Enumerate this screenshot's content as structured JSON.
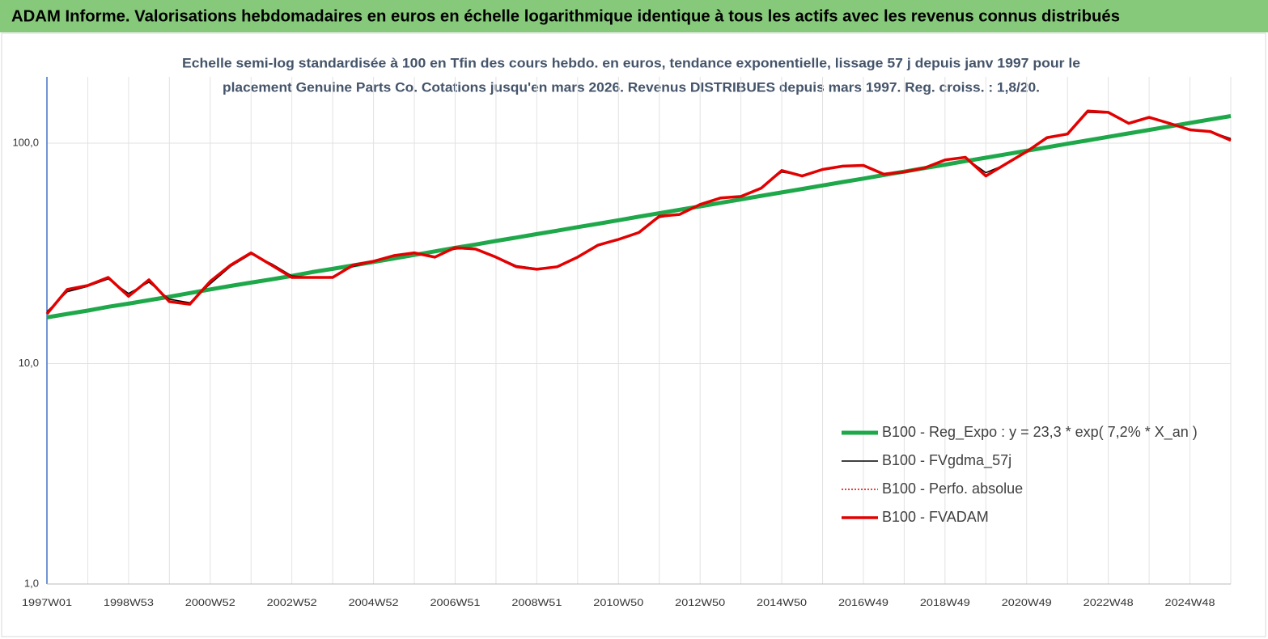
{
  "chart_data": {
    "type": "line",
    "title": "ADAM Informe. Valorisations hebdomadaires en euros en échelle logarithmique identique à tous les actifs avec les revenus connus distribués",
    "subtitle": [
      "Echelle semi-log standardisée à 100 en Tfin des cours hebdo. en euros, tendance exponentielle, lissage 57 j depuis janv 1997 pour le",
      "placement Genuine Parts Co. Cotations jusqu'en mars 2026. Revenus DISTRIBUES depuis mars 1997. Reg. croiss. : 1,8/20."
    ],
    "log_y": true,
    "grid": true,
    "categories": [
      "1997W01",
      null,
      null,
      null,
      "1998W53",
      null,
      null,
      null,
      "2000W52",
      null,
      null,
      null,
      "2002W52",
      null,
      null,
      null,
      "2004W52",
      null,
      null,
      null,
      "2006W51",
      null,
      null,
      null,
      "2008W51",
      null,
      null,
      null,
      "2010W50",
      null,
      null,
      null,
      "2012W50",
      null,
      null,
      null,
      "2014W50",
      null,
      null,
      null,
      "2016W49",
      null,
      null,
      null,
      "2018W49",
      null,
      null,
      null,
      "2020W49",
      null,
      null,
      null,
      "2022W48",
      null,
      null,
      null,
      "2024W48",
      null,
      null
    ],
    "ylim": [
      1,
      200
    ],
    "yticks": [
      {
        "value": 1,
        "label": "1,0"
      },
      {
        "value": 10,
        "label": "10,0"
      },
      {
        "value": 100,
        "label": "100,0"
      }
    ],
    "series": [
      {
        "name": "B100 - Reg_Expo : y = 23,3 *  exp( 7,2% *   X_an )",
        "color": "#1ea84a",
        "style": "solid",
        "width": 5,
        "values": [
          16.2,
          16.8,
          17.4,
          18.1,
          18.7,
          19.4,
          20.1,
          20.9,
          21.7,
          22.5,
          23.3,
          24.1,
          25.0,
          26.0,
          26.9,
          27.9,
          28.9,
          30.0,
          31.1,
          32.3,
          33.5,
          34.7,
          36.0,
          37.3,
          38.7,
          40.1,
          41.6,
          43.1,
          44.7,
          46.4,
          48.1,
          49.9,
          51.7,
          53.6,
          55.6,
          57.7,
          59.8,
          62.0,
          64.3,
          66.7,
          69.1,
          71.7,
          74.3,
          77.1,
          79.9,
          82.9,
          85.9,
          89.1,
          92.4,
          95.8,
          99.4,
          103.0,
          106.8,
          110.8,
          114.9,
          119.1,
          123.5,
          128.1,
          132.8
        ]
      },
      {
        "name": "B100 - FVgdma_57j",
        "color": "#000000",
        "style": "solid",
        "width": 1.5,
        "values": [
          17.2,
          21.2,
          22.4,
          24.2,
          20.8,
          23.4,
          19.6,
          18.9,
          23.0,
          27.6,
          31.4,
          28.4,
          25.0,
          24.6,
          24.8,
          27.6,
          29.0,
          30.7,
          31.6,
          30.6,
          33.2,
          33.0,
          30.6,
          27.8,
          27.0,
          27.5,
          30.2,
          34.2,
          36.4,
          39.6,
          46.0,
          47.6,
          52.4,
          56.0,
          57.6,
          63.0,
          74.0,
          71.6,
          75.6,
          78.4,
          79.0,
          72.8,
          74.4,
          77.4,
          83.4,
          85.8,
          73.5,
          80.2,
          91.0,
          105,
          111,
          138,
          137,
          124,
          130,
          123,
          116,
          113,
          105
        ]
      },
      {
        "name": "B100 - Perfo. absolue",
        "color": "#e30000",
        "style": "dotted",
        "width": 1.5,
        "values": [
          16.8,
          21.7,
          22.6,
          24.6,
          20.2,
          24,
          19.1,
          18.6,
          23.6,
          28,
          31.8,
          28,
          24.6,
          24.6,
          24.6,
          28,
          29.1,
          30.9,
          31.8,
          30.4,
          33.6,
          33.1,
          30.4,
          27.5,
          26.8,
          27.5,
          30.4,
          34.5,
          36.6,
          39.3,
          46.6,
          47.5,
          52.7,
          56.4,
          57.3,
          62.5,
          75.2,
          71,
          76,
          78.7,
          79.3,
          72.3,
          74.1,
          77.2,
          84,
          86.3,
          71,
          80.7,
          91.6,
          106,
          110,
          140,
          138,
          123,
          131,
          123,
          115,
          113,
          103
        ]
      },
      {
        "name": "B100 - FVADAM",
        "color": "#e30000",
        "style": "solid",
        "width": 3.5,
        "values": [
          16.8,
          21.7,
          22.6,
          24.6,
          20.2,
          24,
          19.1,
          18.6,
          23.6,
          28,
          31.8,
          28,
          24.6,
          24.6,
          24.6,
          28,
          29.1,
          30.9,
          31.8,
          30.4,
          33.6,
          33.1,
          30.4,
          27.5,
          26.8,
          27.5,
          30.4,
          34.5,
          36.6,
          39.3,
          46.6,
          47.5,
          52.7,
          56.4,
          57.3,
          62.5,
          75.2,
          71,
          76,
          78.7,
          79.3,
          72.3,
          74.1,
          77.2,
          84,
          86.3,
          71,
          80.7,
          91.6,
          106,
          110,
          140,
          138,
          123,
          131,
          123,
          115,
          113,
          103
        ]
      }
    ]
  }
}
